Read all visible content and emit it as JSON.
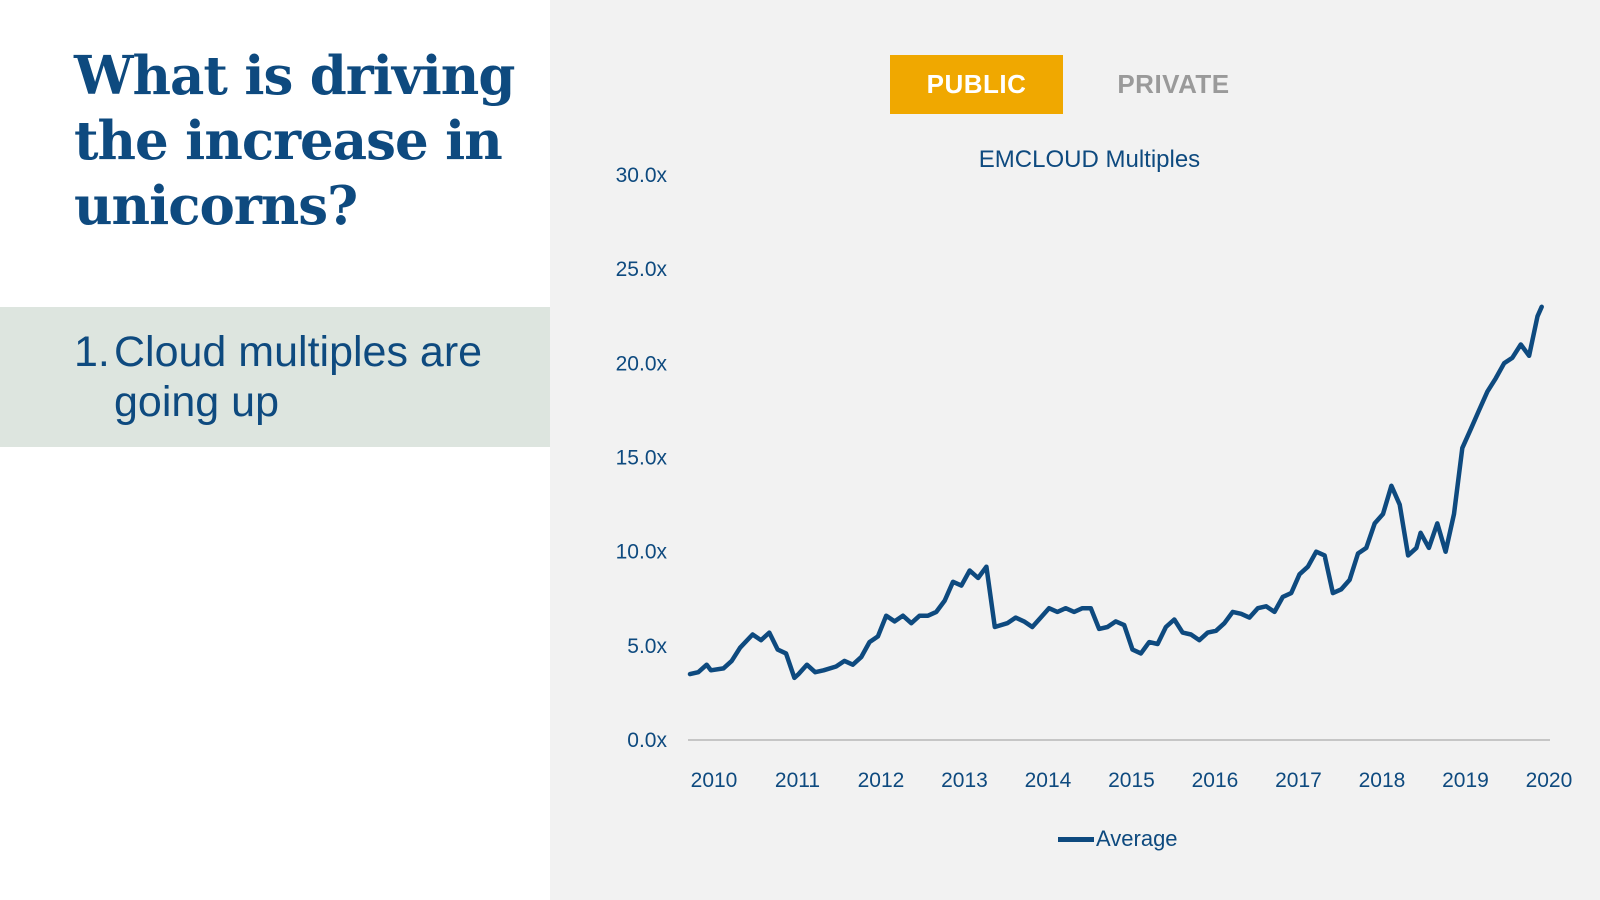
{
  "headline": [
    "What is driving",
    "the increase in",
    "unicorns?"
  ],
  "point": {
    "number": "1.",
    "text": "Cloud multiples are going up"
  },
  "tabs": {
    "public": "PUBLIC",
    "private": "PRIVATE"
  },
  "colors": {
    "brand_blue": "#0e4a7f",
    "accent_orange": "#f0a800",
    "banner_bg": "#dde5df",
    "panel_bg": "#f2f2f2",
    "inactive_tab": "#9a9a9a"
  },
  "chart_data": {
    "type": "line",
    "title": "EMCLOUD Multiples",
    "xlabel": "",
    "ylabel": "",
    "ylim": [
      0,
      30
    ],
    "xlim": [
      2010,
      2020.3
    ],
    "y_ticks": [
      "0.0x",
      "5.0x",
      "10.0x",
      "15.0x",
      "20.0x",
      "25.0x",
      "30.0x"
    ],
    "x_ticks": [
      "2010",
      "2011",
      "2012",
      "2013",
      "2014",
      "2015",
      "2016",
      "2017",
      "2018",
      "2019",
      "2020"
    ],
    "grid": false,
    "legend": "bottom",
    "series": [
      {
        "name": "Average",
        "color": "#0e4a7f",
        "x": [
          2010.0,
          2010.1,
          2010.2,
          2010.25,
          2010.4,
          2010.5,
          2010.6,
          2010.75,
          2010.85,
          2010.95,
          2011.05,
          2011.15,
          2011.25,
          2011.3,
          2011.4,
          2011.5,
          2011.6,
          2011.75,
          2011.85,
          2011.95,
          2012.05,
          2012.15,
          2012.25,
          2012.35,
          2012.45,
          2012.55,
          2012.65,
          2012.75,
          2012.85,
          2012.95,
          2013.05,
          2013.15,
          2013.25,
          2013.35,
          2013.45,
          2013.55,
          2013.65,
          2013.8,
          2013.9,
          2014.0,
          2014.1,
          2014.2,
          2014.3,
          2014.4,
          2014.5,
          2014.6,
          2014.7,
          2014.8,
          2014.9,
          2015.0,
          2015.1,
          2015.2,
          2015.3,
          2015.4,
          2015.5,
          2015.6,
          2015.7,
          2015.8,
          2015.9,
          2016.0,
          2016.1,
          2016.2,
          2016.3,
          2016.4,
          2016.5,
          2016.6,
          2016.7,
          2016.8,
          2016.9,
          2017.0,
          2017.1,
          2017.2,
          2017.3,
          2017.4,
          2017.5,
          2017.6,
          2017.7,
          2017.8,
          2017.9,
          2018.0,
          2018.1,
          2018.2,
          2018.3,
          2018.4,
          2018.5,
          2018.6,
          2018.7,
          2018.75,
          2018.85,
          2018.95,
          2019.05,
          2019.15,
          2019.25,
          2019.35,
          2019.45,
          2019.55,
          2019.65,
          2019.75,
          2019.85,
          2019.95,
          2020.05,
          2020.15,
          2020.2
        ],
        "y": [
          3.5,
          3.6,
          4.0,
          3.7,
          3.8,
          4.2,
          4.9,
          5.6,
          5.3,
          5.7,
          4.8,
          4.6,
          3.3,
          3.5,
          4.0,
          3.6,
          3.7,
          3.9,
          4.2,
          4.0,
          4.4,
          5.2,
          5.5,
          6.6,
          6.3,
          6.6,
          6.2,
          6.6,
          6.6,
          6.8,
          7.4,
          8.4,
          8.2,
          9.0,
          8.6,
          9.2,
          6.0,
          6.2,
          6.5,
          6.3,
          6.0,
          6.5,
          7.0,
          6.8,
          7.0,
          6.8,
          7.0,
          7.0,
          5.9,
          6.0,
          6.3,
          6.1,
          4.8,
          4.6,
          5.2,
          5.1,
          6.0,
          6.4,
          5.7,
          5.6,
          5.3,
          5.7,
          5.8,
          6.2,
          6.8,
          6.7,
          6.5,
          7.0,
          7.1,
          6.8,
          7.6,
          7.8,
          8.8,
          9.2,
          10.0,
          9.8,
          7.8,
          8.0,
          8.5,
          9.9,
          10.2,
          11.5,
          12.0,
          13.5,
          12.5,
          9.8,
          10.2,
          11.0,
          10.2,
          11.5,
          10.0,
          12.0,
          15.5,
          16.5,
          17.5,
          18.5,
          19.2,
          20.0,
          20.3,
          21.0,
          20.4,
          22.5,
          23.0
        ]
      }
    ]
  }
}
